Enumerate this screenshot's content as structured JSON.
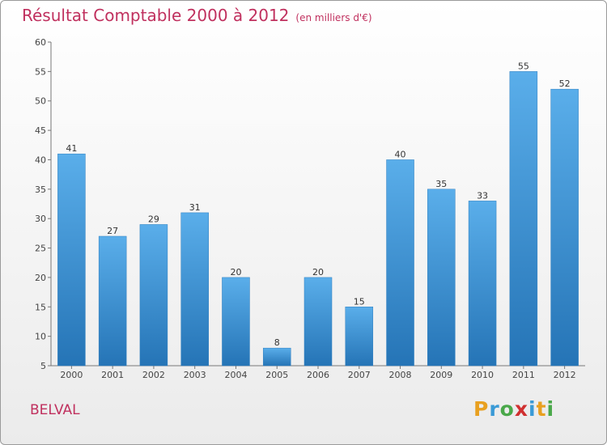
{
  "chart_data": {
    "type": "bar",
    "title": "Résultat Comptable 2000 à 2012",
    "subtitle": "(en milliers d'€)",
    "categories": [
      "2000",
      "2001",
      "2002",
      "2003",
      "2004",
      "2005",
      "2006",
      "2007",
      "2008",
      "2009",
      "2010",
      "2011",
      "2012"
    ],
    "values": [
      41,
      27,
      29,
      31,
      20,
      8,
      20,
      15,
      40,
      35,
      33,
      55,
      52
    ],
    "ylim": [
      5,
      60
    ],
    "yticks": [
      5,
      10,
      15,
      20,
      25,
      30,
      35,
      40,
      45,
      50,
      55,
      60
    ],
    "xlabel": "",
    "ylabel": "",
    "grid": false
  },
  "commune": "BELVAL",
  "logo": {
    "letters": [
      "P",
      "r",
      "o",
      "x",
      "i",
      "t",
      "i"
    ],
    "colors": [
      "#e8a020",
      "#3a9ad6",
      "#4aa84a",
      "#d03030",
      "#3a9ad6",
      "#e8a020",
      "#4aa84a"
    ]
  },
  "colors": {
    "bar": "#3d8fd0",
    "title": "#c0305e"
  }
}
